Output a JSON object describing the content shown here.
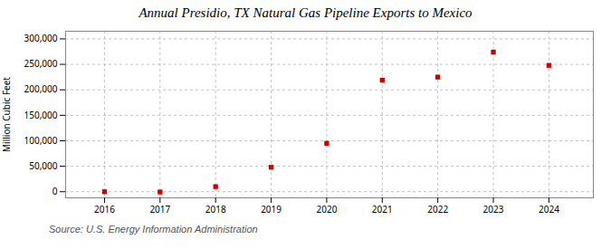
{
  "chart_data": {
    "type": "scatter",
    "title": "Annual Presidio, TX Natural Gas Pipeline Exports to Mexico",
    "ylabel": "Million Cubic Feet",
    "source": "Source: U.S. Energy Information Administration",
    "x": [
      2016,
      2017,
      2018,
      2019,
      2020,
      2021,
      2022,
      2023,
      2024
    ],
    "values": [
      0,
      -500,
      10000,
      48000,
      95000,
      219000,
      225000,
      274000,
      248000
    ],
    "color": "#cc0000",
    "marker": "square",
    "xlim": [
      2015.3,
      2024.8
    ],
    "ylim": [
      -12000,
      315000
    ],
    "xticks": [
      2016,
      2017,
      2018,
      2019,
      2020,
      2021,
      2022,
      2023,
      2024
    ],
    "yticks": [
      0,
      {
        "value": 50000,
        "label": "50,000"
      },
      {
        "value": 100000,
        "label": "100,000"
      },
      {
        "value": 150000,
        "label": "150,000"
      },
      {
        "value": 200000,
        "label": "200,000"
      },
      {
        "value": 250000,
        "label": "250,000"
      },
      {
        "value": 300000,
        "label": "300,000"
      }
    ],
    "grid": true
  }
}
